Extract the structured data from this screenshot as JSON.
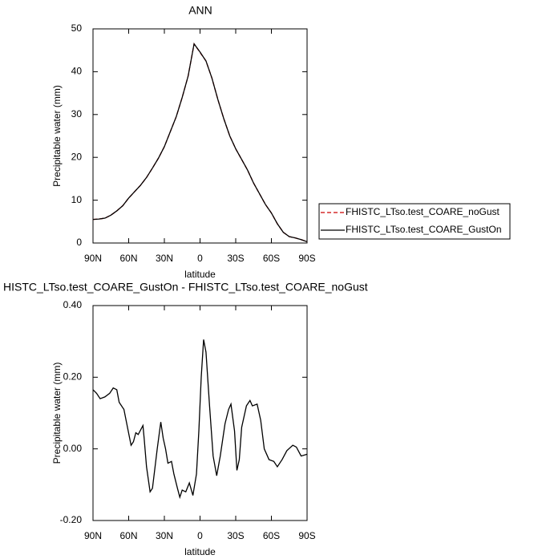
{
  "chart_data": [
    {
      "type": "line",
      "title": "ANN",
      "xlabel": "latitude",
      "ylabel": "Precipitable water (mm)",
      "x": [
        90,
        85,
        80,
        75,
        70,
        65,
        60,
        55,
        50,
        45,
        40,
        35,
        30,
        25,
        20,
        15,
        10,
        5,
        0,
        -5,
        -10,
        -15,
        -20,
        -25,
        -30,
        -35,
        -40,
        -45,
        -50,
        -55,
        -60,
        -65,
        -70,
        -75,
        -80,
        -85,
        -90
      ],
      "series": [
        {
          "name": "FHISTC_LTso.test_COARE_noGust",
          "color": "#cc0000",
          "dashed": true,
          "values": [
            5.5,
            5.6,
            5.8,
            6.5,
            7.5,
            8.7,
            10.5,
            12,
            13.5,
            15.3,
            17.5,
            19.8,
            22.5,
            26,
            29.5,
            34,
            39,
            46.5,
            44.5,
            42.5,
            38.5,
            33.5,
            29,
            25,
            22,
            19.5,
            17,
            14,
            11.5,
            9,
            7,
            4.5,
            2.5,
            1.5,
            1.2,
            0.8,
            0.3
          ]
        },
        {
          "name": "FHISTC_LTso.test_COARE_GustOn",
          "color": "#000000",
          "dashed": false,
          "values": [
            5.5,
            5.6,
            5.8,
            6.5,
            7.5,
            8.7,
            10.5,
            12,
            13.5,
            15.3,
            17.5,
            19.8,
            22.5,
            26,
            29.5,
            34,
            39,
            46.5,
            44.6,
            42.5,
            38.5,
            33.5,
            29,
            25,
            22,
            19.5,
            17,
            14,
            11.5,
            9,
            7,
            4.5,
            2.5,
            1.5,
            1.2,
            0.8,
            0.3
          ]
        }
      ],
      "xlim": [
        90,
        -90
      ],
      "xticks": [
        {
          "value": 90,
          "label": "90N"
        },
        {
          "value": 60,
          "label": "60N"
        },
        {
          "value": 30,
          "label": "30N"
        },
        0,
        {
          "value": -30,
          "label": "30S"
        },
        {
          "value": -60,
          "label": "60S"
        },
        {
          "value": -90,
          "label": "90S"
        }
      ],
      "ylim": [
        0,
        50
      ],
      "yticks": [
        0,
        10,
        20,
        30,
        40,
        50
      ],
      "legend": "right"
    },
    {
      "type": "line",
      "title": "HISTC_LTso.test_COARE_GustOn - FHISTC_LTso.test_COARE_noGust",
      "xlabel": "latitude",
      "ylabel": "Precipitable water (mm)",
      "x": [
        90,
        87,
        84,
        80,
        76,
        73,
        70,
        68,
        64,
        61,
        58,
        56,
        54,
        52,
        48,
        47,
        45,
        42,
        40,
        36,
        33,
        31,
        29,
        27,
        24,
        22,
        19,
        17,
        15,
        12,
        9,
        6,
        3,
        1,
        -1,
        -3,
        -5,
        -8,
        -11,
        -14,
        -17,
        -21,
        -24,
        -26,
        -29,
        -31,
        -33,
        -35,
        -39,
        -42,
        -44,
        -48,
        -51,
        -54,
        -58,
        -62,
        -65,
        -69,
        -73,
        -78,
        -81,
        -85,
        -90
      ],
      "values": [
        0.165,
        0.155,
        0.14,
        0.145,
        0.155,
        0.17,
        0.165,
        0.13,
        0.11,
        0.06,
        0.01,
        0.02,
        0.045,
        0.04,
        0.065,
        0.03,
        -0.05,
        -0.12,
        -0.11,
        0.0,
        0.075,
        0.03,
        0.0,
        -0.04,
        -0.035,
        -0.07,
        -0.11,
        -0.135,
        -0.115,
        -0.12,
        -0.095,
        -0.13,
        -0.07,
        0.05,
        0.2,
        0.305,
        0.27,
        0.12,
        -0.02,
        -0.075,
        -0.02,
        0.07,
        0.11,
        0.125,
        0.05,
        -0.06,
        -0.03,
        0.06,
        0.12,
        0.135,
        0.12,
        0.125,
        0.08,
        0.0,
        -0.03,
        -0.035,
        -0.05,
        -0.03,
        -0.005,
        0.01,
        0.005,
        -0.02,
        -0.015
      ],
      "color": "#000000",
      "xlim": [
        90,
        -90
      ],
      "xticks": [
        {
          "value": 90,
          "label": "90N"
        },
        {
          "value": 60,
          "label": "60N"
        },
        {
          "value": 30,
          "label": "30N"
        },
        0,
        {
          "value": -30,
          "label": "30S"
        },
        {
          "value": -60,
          "label": "60S"
        },
        {
          "value": -90,
          "label": "90S"
        }
      ],
      "ylim": [
        -0.2,
        0.4
      ],
      "yticks": [
        {
          "value": -0.2,
          "label": "-0.20"
        },
        {
          "value": 0,
          "label": "0.00"
        },
        {
          "value": 0.2,
          "label": "0.20"
        },
        {
          "value": 0.4,
          "label": "0.40"
        }
      ]
    }
  ]
}
